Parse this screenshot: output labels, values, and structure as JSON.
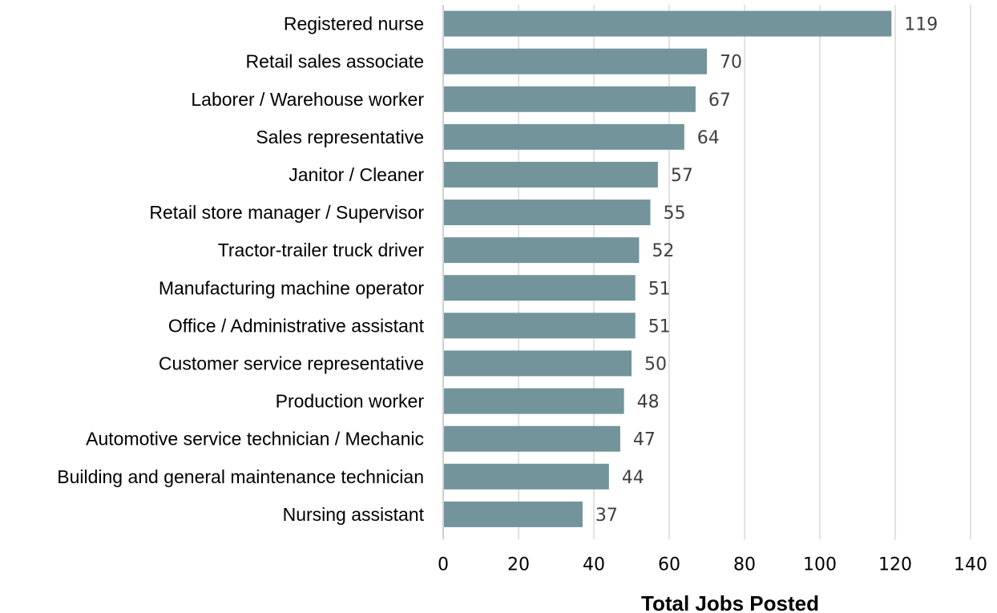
{
  "chart_data": {
    "type": "bar",
    "orientation": "horizontal",
    "title": "",
    "xlabel": "Total Jobs Posted",
    "ylabel": "",
    "categories": [
      "Registered nurse",
      "Retail sales associate",
      "Laborer / Warehouse worker",
      "Sales representative",
      "Janitor / Cleaner",
      "Retail store manager / Supervisor",
      "Tractor-trailer truck driver",
      "Manufacturing machine operator",
      "Office / Administrative assistant",
      "Customer service representative",
      "Production worker",
      "Automotive service technician / Mechanic",
      "Building and general maintenance technician",
      "Nursing assistant"
    ],
    "values": [
      119,
      70,
      67,
      64,
      57,
      55,
      52,
      51,
      51,
      50,
      48,
      47,
      44,
      37
    ],
    "data_labels": [
      "119",
      "70",
      "67",
      "64",
      "57",
      "55",
      "52",
      "51",
      "51",
      "50",
      "48",
      "47",
      "44",
      "37"
    ],
    "xlim": [
      0,
      140
    ],
    "xticks": [
      "0",
      "20",
      "40",
      "60",
      "80",
      "100",
      "120",
      "140"
    ],
    "grid": "vertical",
    "legend": "none",
    "colors": {
      "bar": "#72949a",
      "grid": "#d9d9d9",
      "axis": "#bfbfbf"
    }
  }
}
